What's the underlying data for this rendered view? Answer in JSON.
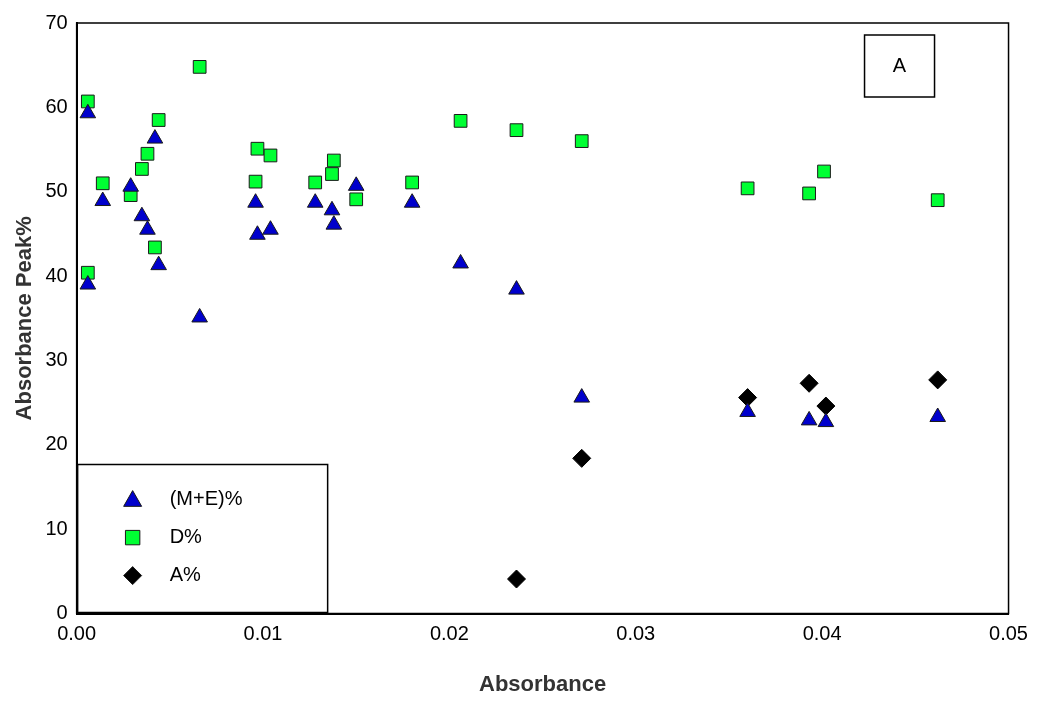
{
  "chart_data": {
    "type": "scatter",
    "xlabel": "Absorbance",
    "ylabel": "Absorbance Peak%",
    "xlim": [
      0,
      0.05
    ],
    "xticks": [
      {
        "value": 0,
        "label": "0.00"
      },
      0.01,
      0.02,
      0.03,
      0.04,
      0.05
    ],
    "ylim": [
      0,
      70
    ],
    "yticks": [
      0,
      10,
      20,
      30,
      40,
      50,
      60,
      70
    ],
    "grid": false,
    "legend": "bottom left",
    "annotations": [
      "A"
    ],
    "series": [
      {
        "name": "(M+E)%",
        "color": "#0000cc",
        "marker": "triangle",
        "x": [
          0.0006,
          0.0006,
          0.0014,
          0.0029,
          0.0035,
          0.0038,
          0.0044,
          0.0042,
          0.0066,
          0.0096,
          0.0097,
          0.0104,
          0.0128,
          0.0137,
          0.0138,
          0.015,
          0.018,
          0.0206,
          0.0236,
          0.0271,
          0.036,
          0.0393,
          0.0402,
          0.0462
        ],
        "values": [
          59.3,
          39.0,
          48.9,
          50.6,
          47.1,
          45.5,
          41.3,
          56.3,
          35.1,
          48.7,
          44.9,
          45.5,
          48.7,
          47.8,
          46.1,
          50.7,
          48.7,
          41.5,
          38.4,
          25.6,
          23.9,
          22.9,
          22.7,
          23.3
        ]
      },
      {
        "name": "D%",
        "color": "#00ff33",
        "marker": "square",
        "x": [
          0.0006,
          0.0006,
          0.0014,
          0.0029,
          0.0035,
          0.0038,
          0.0044,
          0.0042,
          0.0066,
          0.0097,
          0.0104,
          0.0096,
          0.0128,
          0.0138,
          0.0137,
          0.015,
          0.018,
          0.0206,
          0.0236,
          0.0271,
          0.036,
          0.0393,
          0.0401,
          0.0462
        ],
        "values": [
          60.7,
          40.4,
          51.0,
          49.6,
          52.7,
          54.5,
          58.5,
          43.4,
          64.8,
          55.1,
          54.3,
          51.2,
          51.1,
          53.7,
          52.1,
          49.1,
          51.1,
          58.4,
          57.3,
          56.0,
          50.4,
          49.8,
          52.4,
          49.0
        ]
      },
      {
        "name": "A%",
        "color": "#000000",
        "marker": "diamond",
        "x": [
          0.0236,
          0.0271,
          0.036,
          0.0393,
          0.0402,
          0.0462
        ],
        "values": [
          4.1,
          18.4,
          25.6,
          27.3,
          24.6,
          27.7
        ]
      }
    ]
  }
}
